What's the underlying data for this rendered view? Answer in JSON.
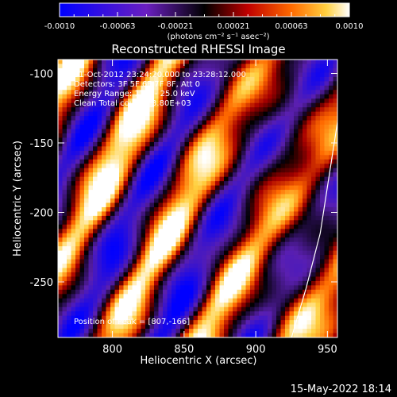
{
  "colorbar": {
    "tick_labels": [
      "-0.0010",
      "-0.00063",
      "-0.00021",
      "0.00021",
      "0.00063",
      "0.0010"
    ],
    "unit_label": "(photons cm⁻² s⁻¹ asec⁻²)",
    "range": [
      -0.001,
      0.001
    ]
  },
  "annotations": [
    "31-Oct-2012 23:24:20.000 to 23:28:12.000",
    "Detectors: 3F 5F 6F 7F 8F, Att 0",
    "Energy Range: 12.0 - 25.0 keV",
    "Clean     Total counts: 3.80E+03"
  ],
  "peak_annotation": "Position of Peak = [807,-166]",
  "footer_timestamp": "15-May-2022 18:14",
  "chart_data": {
    "type": "heatmap",
    "title": "Reconstructed RHESSI Image",
    "xlabel": "Heliocentric X (arcsec)",
    "ylabel": "Heliocentric Y (arcsec)",
    "xlim": [
      762,
      957
    ],
    "ylim": [
      -290,
      -90
    ],
    "xticks": [
      800,
      850,
      900,
      950
    ],
    "yticks": [
      -100,
      -150,
      -200,
      -250
    ],
    "colormap": [
      "#0000ff",
      "#5a1fb0",
      "#000000",
      "#a80000",
      "#ff6a00",
      "#ffd040",
      "#ffffff"
    ],
    "grid": false,
    "colorbar_position": "top",
    "limb_arc": {
      "x": [
        925,
        935,
        945,
        957
      ],
      "y": [
        -290,
        -255,
        -215,
        -135
      ]
    }
  }
}
